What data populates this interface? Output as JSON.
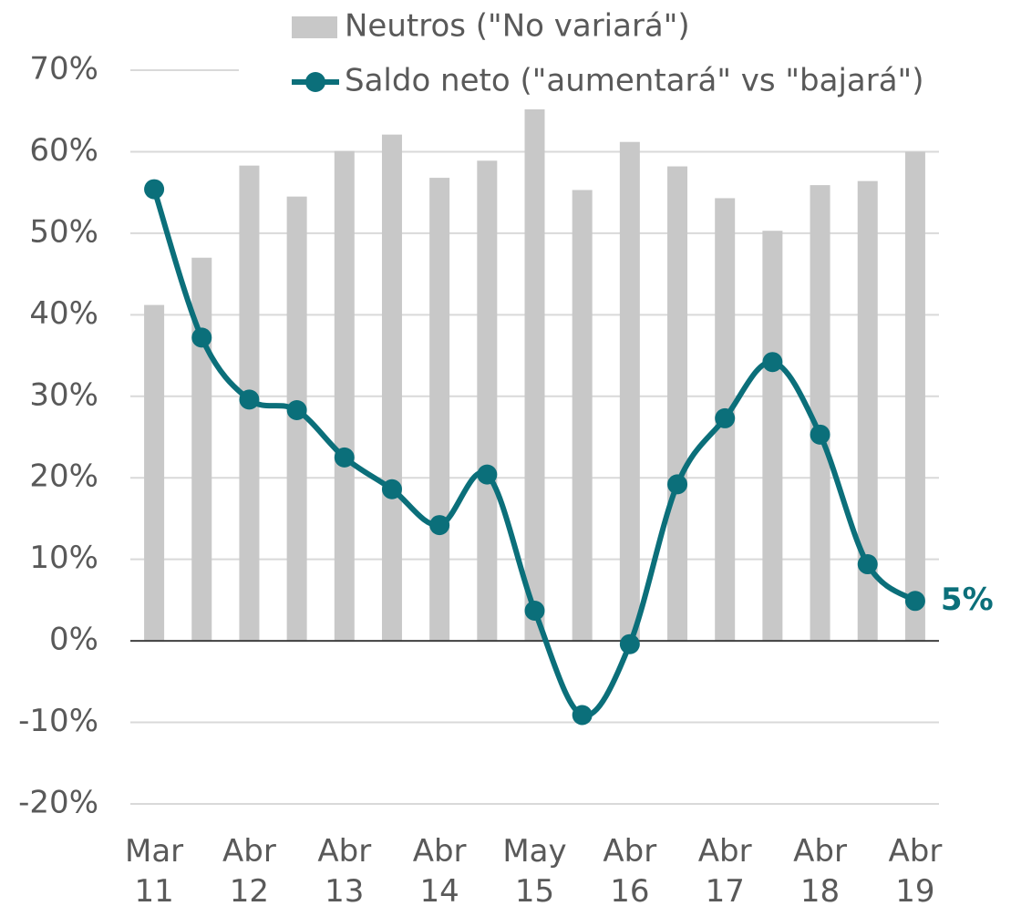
{
  "chart_data": {
    "type": "bar_line",
    "categories": [
      "Mar 11",
      null,
      "Abr 12",
      null,
      "Abr 13",
      null,
      "Abr 14",
      null,
      "May 15",
      null,
      "Abr 16",
      null,
      "Abr 17",
      null,
      "Abr 18",
      null,
      "Abr 19"
    ],
    "series": [
      {
        "name": "Neutros (\"No variará\")",
        "type": "bar",
        "color": "#c8c8c8",
        "values": [
          41.2,
          47.0,
          58.3,
          54.5,
          60.1,
          62.1,
          56.8,
          58.9,
          65.3,
          55.3,
          61.2,
          58.2,
          54.3,
          50.3,
          55.9,
          56.4,
          60.0
        ]
      },
      {
        "name": "Saldo neto (\"aumentará\" vs \"bajará\")",
        "type": "line",
        "color": "#0b6f7a",
        "values": [
          55.4,
          37.2,
          29.6,
          28.3,
          22.5,
          18.6,
          14.2,
          20.4,
          3.7,
          -9.1,
          -0.4,
          19.2,
          27.3,
          34.2,
          25.3,
          9.4,
          4.9
        ],
        "value_labels": [
          null,
          null,
          null,
          null,
          null,
          null,
          null,
          null,
          null,
          null,
          null,
          null,
          null,
          null,
          null,
          null,
          "5%"
        ]
      }
    ],
    "ylim": [
      -20,
      70
    ],
    "yticks": [
      {
        "value": -20,
        "label": "-20%"
      },
      {
        "value": -10,
        "label": "-10%"
      },
      {
        "value": 0,
        "label": "0%"
      },
      {
        "value": 10,
        "label": "10%"
      },
      {
        "value": 20,
        "label": "20%"
      },
      {
        "value": 30,
        "label": "30%"
      },
      {
        "value": 40,
        "label": "40%"
      },
      {
        "value": 50,
        "label": "50%"
      },
      {
        "value": 60,
        "label": "60%"
      },
      {
        "value": 70,
        "label": "70%"
      }
    ],
    "grid": true,
    "legend": "top"
  }
}
